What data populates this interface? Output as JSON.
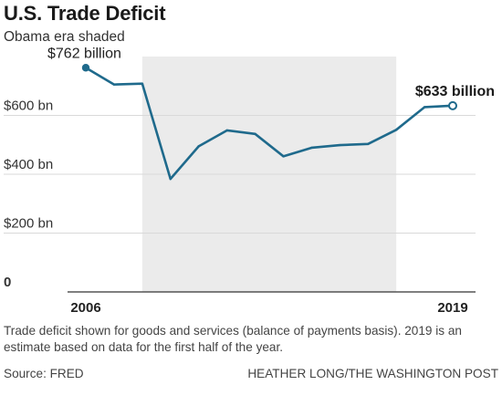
{
  "header": {
    "title": "U.S. Trade Deficit",
    "subtitle": "Obama era shaded"
  },
  "footer": {
    "note": "Trade deficit shown for goods and services (balance of payments basis). 2019 is an estimate based on data for the first half of the year.",
    "source": "Source: FRED",
    "credit": "HEATHER LONG/THE WASHINGTON POST"
  },
  "colors": {
    "line": "#1f6a8c",
    "shade": "#ebebeb",
    "grid": "#d9d9d9",
    "axis": "#333333"
  },
  "chart_data": {
    "type": "line",
    "title": "U.S. Trade Deficit",
    "subtitle": "Obama era shaded",
    "ylim": [
      0,
      800
    ],
    "yticks": [
      {
        "value": 0,
        "label": "0"
      },
      {
        "value": 200,
        "label": "$200 bn"
      },
      {
        "value": 400,
        "label": "$400 bn"
      },
      {
        "value": 600,
        "label": "$600 bn"
      }
    ],
    "xlim": [
      2006,
      2019
    ],
    "xticks": [
      {
        "value": 2006,
        "label": "2006"
      },
      {
        "value": 2019,
        "label": "2019"
      }
    ],
    "grid": true,
    "shaded_range": {
      "start": 2008,
      "end": 2017
    },
    "series": [
      {
        "x": [
          2006,
          2007,
          2008,
          2009,
          2010,
          2011,
          2012,
          2013,
          2014,
          2015,
          2016,
          2017,
          2018,
          2019
        ],
        "values": [
          762,
          705,
          708,
          384,
          495,
          549,
          537,
          461,
          490,
          499,
          503,
          551,
          628,
          633
        ]
      }
    ],
    "annotations": [
      {
        "x": 2006,
        "y": 762,
        "label": "$762 billion",
        "style": "filled-dot"
      },
      {
        "x": 2019,
        "y": 633,
        "label": "$633 billion",
        "style": "open-dot"
      }
    ]
  }
}
